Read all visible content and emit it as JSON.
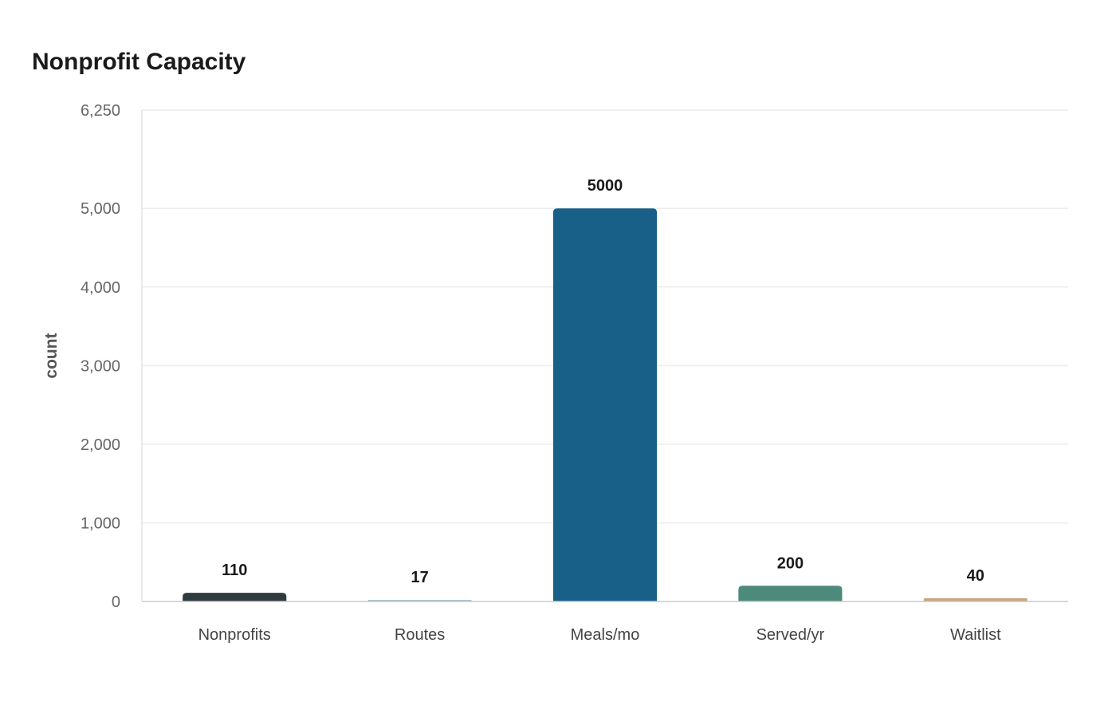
{
  "chart_data": {
    "type": "bar",
    "title": "Nonprofit Capacity",
    "xlabel": "",
    "ylabel": "count",
    "categories": [
      "Nonprofits",
      "Routes",
      "Meals/mo",
      "Served/yr",
      "Waitlist"
    ],
    "values": [
      110,
      17,
      5000,
      200,
      40
    ],
    "data_labels": [
      "110",
      "17",
      "5000",
      "200",
      "40"
    ],
    "colors": [
      "#2f3b3f",
      "#a9c1cc",
      "#186088",
      "#4e8a7b",
      "#c9a57f"
    ],
    "ylim": [
      0,
      6250
    ],
    "yticks": [
      0,
      1000,
      2000,
      3000,
      4000,
      5000,
      6250
    ],
    "ytick_labels": [
      "0",
      "1,000",
      "2,000",
      "3,000",
      "4,000",
      "5,000",
      "6,250"
    ],
    "grid": true,
    "legend": "none"
  }
}
